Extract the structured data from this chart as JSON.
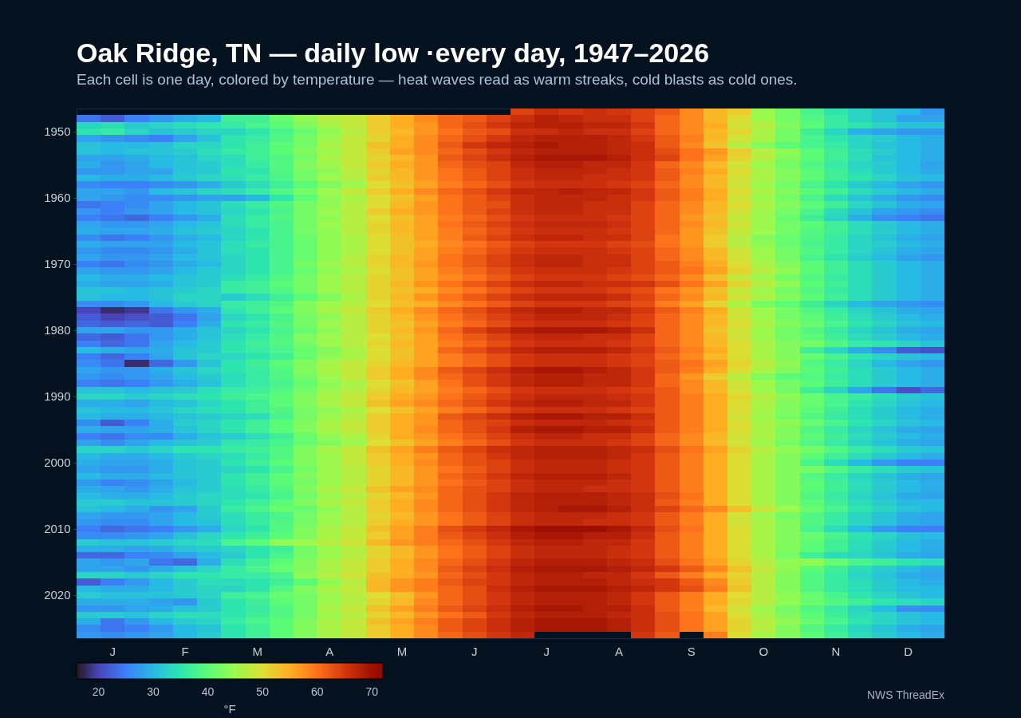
{
  "chart_data": {
    "type": "heatmap",
    "title": "Oak Ridge, TN — daily low ·every day, 1947–2026",
    "subtitle": "Each cell is one day, colored by temperature — heat waves read as warm streaks, cold blasts as cold ones.",
    "categories": [
      null,
      "J",
      null,
      null,
      "F",
      null,
      null,
      "M",
      null,
      null,
      "A",
      null,
      null,
      "M",
      null,
      null,
      "J",
      null,
      null,
      "J",
      null,
      null,
      "A",
      null,
      null,
      "S",
      null,
      null,
      "O",
      null,
      null,
      "N",
      null,
      null,
      "D",
      null
    ],
    "y_categories": [
      null,
      null,
      null,
      "1950",
      null,
      null,
      null,
      null,
      null,
      null,
      null,
      null,
      null,
      "1960",
      null,
      null,
      null,
      null,
      null,
      null,
      null,
      null,
      null,
      "1970",
      null,
      null,
      null,
      null,
      null,
      null,
      null,
      null,
      null,
      "1980",
      null,
      null,
      null,
      null,
      null,
      null,
      null,
      null,
      null,
      "1990",
      null,
      null,
      null,
      null,
      null,
      null,
      null,
      null,
      null,
      "2000",
      null,
      null,
      null,
      null,
      null,
      null,
      null,
      null,
      null,
      "2010",
      null,
      null,
      null,
      null,
      null,
      null,
      null,
      null,
      null,
      "2020",
      null,
      null,
      null,
      null,
      null,
      null
    ],
    "cells": [
      [
        null,
        null,
        null,
        null,
        null,
        null,
        null,
        null,
        null,
        null,
        null,
        null,
        null,
        null,
        null,
        null,
        null,
        null,
        64,
        66,
        65,
        66,
        65,
        64,
        62,
        58,
        54,
        52,
        45,
        42,
        38,
        35,
        33,
        31,
        30,
        27
      ],
      [
        24,
        22,
        25,
        27,
        29,
        30,
        37,
        37,
        41,
        44,
        47,
        48,
        52,
        55,
        58,
        61,
        62,
        64,
        66,
        68,
        67,
        66,
        66,
        64,
        61,
        58,
        54,
        50,
        45,
        42,
        39,
        36,
        33,
        31,
        28,
        28
      ],
      [
        33,
        34,
        32,
        33,
        34,
        35,
        36,
        38,
        40,
        43,
        46,
        48,
        52,
        55,
        57,
        61,
        63,
        65,
        67,
        68,
        68,
        67,
        67,
        65,
        61,
        58,
        55,
        49,
        47,
        43,
        40,
        36,
        35,
        33,
        31,
        31
      ],
      [
        35,
        36,
        33,
        31,
        32,
        33,
        33,
        35,
        38,
        41,
        44,
        47,
        52,
        54,
        57,
        60,
        62,
        63,
        66,
        66,
        67,
        66,
        66,
        64,
        61,
        58,
        54,
        51,
        46,
        42,
        37,
        33,
        29,
        28,
        27,
        27
      ],
      [
        28,
        27,
        26,
        25,
        28,
        31,
        35,
        36,
        39,
        42,
        45,
        48,
        51,
        55,
        58,
        61,
        63,
        65,
        67,
        68,
        68,
        68,
        67,
        65,
        62,
        59,
        54,
        49,
        46,
        42,
        38,
        35,
        33,
        32,
        30,
        29
      ],
      [
        31,
        30,
        30,
        31,
        33,
        33,
        35,
        37,
        40,
        42,
        46,
        48,
        53,
        55,
        58,
        62,
        65,
        67,
        68,
        69,
        68,
        68,
        67,
        66,
        62,
        58,
        53,
        47,
        43,
        40,
        38,
        36,
        33,
        31,
        30,
        29
      ],
      [
        31,
        30,
        31,
        31,
        32,
        34,
        36,
        37,
        40,
        43,
        45,
        48,
        52,
        56,
        58,
        61,
        63,
        65,
        67,
        68,
        68,
        68,
        67,
        66,
        63,
        60,
        57,
        52,
        47,
        44,
        40,
        37,
        34,
        32,
        30,
        29
      ],
      [
        28,
        28,
        29,
        30,
        31,
        33,
        34,
        37,
        39,
        42,
        46,
        48,
        51,
        54,
        57,
        62,
        64,
        66,
        68,
        69,
        69,
        69,
        68,
        66,
        64,
        60,
        56,
        51,
        47,
        43,
        40,
        37,
        34,
        31,
        30,
        29
      ],
      [
        29,
        27,
        28,
        30,
        31,
        32,
        34,
        36,
        39,
        43,
        45,
        48,
        52,
        55,
        57,
        61,
        63,
        64,
        67,
        68,
        68,
        67,
        67,
        65,
        61,
        58,
        54,
        49,
        45,
        42,
        39,
        36,
        33,
        32,
        30,
        28
      ],
      [
        27,
        27,
        28,
        28,
        31,
        32,
        35,
        35,
        39,
        42,
        44,
        47,
        51,
        54,
        57,
        60,
        62,
        64,
        66,
        67,
        67,
        67,
        66,
        65,
        62,
        59,
        55,
        50,
        46,
        43,
        40,
        37,
        34,
        32,
        30,
        29
      ],
      [
        30,
        29,
        29,
        30,
        32,
        33,
        34,
        36,
        38,
        42,
        45,
        47,
        52,
        54,
        57,
        60,
        62,
        64,
        66,
        67,
        67,
        66,
        66,
        65,
        62,
        58,
        54,
        49,
        46,
        43,
        40,
        37,
        35,
        33,
        31,
        30
      ],
      [
        26,
        25,
        25,
        26,
        27,
        29,
        32,
        34,
        37,
        40,
        43,
        45,
        50,
        53,
        56,
        59,
        61,
        63,
        65,
        66,
        66,
        66,
        65,
        64,
        61,
        58,
        54,
        49,
        45,
        42,
        38,
        35,
        32,
        30,
        28,
        27
      ],
      [
        28,
        28,
        27,
        30,
        31,
        33,
        34,
        36,
        39,
        42,
        45,
        48,
        52,
        55,
        58,
        61,
        63,
        65,
        67,
        67,
        68,
        67,
        67,
        65,
        62,
        59,
        55,
        50,
        46,
        43,
        40,
        37,
        34,
        32,
        30,
        29
      ],
      [
        28,
        27,
        26,
        26,
        27,
        28,
        28,
        30,
        35,
        40,
        44,
        46,
        50,
        53,
        56,
        60,
        62,
        64,
        66,
        67,
        67,
        67,
        66,
        65,
        62,
        59,
        55,
        49,
        45,
        42,
        38,
        34,
        31,
        29,
        27,
        26
      ],
      [
        24,
        25,
        26,
        28,
        30,
        31,
        34,
        36,
        39,
        42,
        44,
        47,
        50,
        54,
        57,
        60,
        62,
        63,
        66,
        67,
        67,
        66,
        66,
        64,
        61,
        58,
        54,
        50,
        46,
        43,
        40,
        37,
        33,
        31,
        29,
        28
      ],
      [
        27,
        25,
        27,
        28,
        30,
        31,
        33,
        35,
        38,
        42,
        45,
        47,
        52,
        55,
        57,
        60,
        62,
        64,
        66,
        67,
        67,
        66,
        66,
        64,
        61,
        58,
        54,
        49,
        45,
        42,
        38,
        34,
        31,
        28,
        27,
        26
      ],
      [
        25,
        24,
        23,
        25,
        27,
        29,
        34,
        36,
        39,
        42,
        44,
        47,
        50,
        53,
        56,
        59,
        61,
        63,
        65,
        66,
        66,
        66,
        65,
        64,
        61,
        57,
        53,
        48,
        45,
        41,
        37,
        33,
        29,
        26,
        25,
        24
      ],
      [
        28,
        27,
        27,
        28,
        30,
        31,
        34,
        36,
        38,
        42,
        45,
        47,
        51,
        54,
        56,
        60,
        62,
        64,
        66,
        67,
        67,
        67,
        66,
        64,
        61,
        58,
        54,
        49,
        45,
        42,
        40,
        37,
        34,
        32,
        30,
        29
      ],
      [
        29,
        28,
        28,
        29,
        31,
        32,
        33,
        35,
        38,
        42,
        44,
        47,
        51,
        54,
        56,
        59,
        61,
        63,
        65,
        66,
        66,
        66,
        65,
        64,
        61,
        57,
        53,
        48,
        45,
        42,
        39,
        37,
        34,
        32,
        30,
        29
      ],
      [
        26,
        24,
        25,
        27,
        29,
        30,
        33,
        35,
        38,
        41,
        44,
        46,
        50,
        53,
        56,
        59,
        62,
        64,
        66,
        67,
        67,
        66,
        66,
        64,
        60,
        57,
        52,
        47,
        43,
        41,
        39,
        36,
        33,
        31,
        29,
        28
      ],
      [
        29,
        28,
        28,
        28,
        30,
        31,
        34,
        36,
        38,
        41,
        44,
        46,
        50,
        53,
        55,
        58,
        60,
        62,
        64,
        65,
        65,
        65,
        64,
        63,
        60,
        57,
        52,
        47,
        44,
        41,
        38,
        36,
        33,
        32,
        30,
        29
      ],
      [
        27,
        26,
        26,
        27,
        29,
        31,
        34,
        35,
        38,
        41,
        44,
        46,
        50,
        53,
        56,
        59,
        61,
        63,
        65,
        66,
        66,
        66,
        65,
        64,
        61,
        58,
        54,
        49,
        45,
        42,
        39,
        36,
        33,
        31,
        29,
        28
      ],
      [
        28,
        27,
        27,
        28,
        30,
        31,
        33,
        35,
        38,
        41,
        44,
        47,
        51,
        54,
        56,
        60,
        62,
        64,
        66,
        67,
        67,
        66,
        66,
        64,
        61,
        58,
        54,
        49,
        45,
        42,
        38,
        35,
        32,
        30,
        28,
        27
      ],
      [
        25,
        24,
        26,
        27,
        29,
        30,
        33,
        35,
        38,
        42,
        45,
        47,
        51,
        54,
        57,
        60,
        62,
        64,
        66,
        67,
        67,
        66,
        66,
        64,
        62,
        59,
        55,
        50,
        46,
        43,
        40,
        37,
        34,
        32,
        30,
        29
      ],
      [
        28,
        27,
        27,
        28,
        30,
        32,
        33,
        35,
        38,
        41,
        44,
        46,
        50,
        53,
        56,
        59,
        61,
        63,
        65,
        66,
        66,
        66,
        65,
        64,
        62,
        60,
        56,
        51,
        47,
        44,
        40,
        37,
        34,
        32,
        30,
        29
      ],
      [
        30,
        29,
        29,
        30,
        31,
        32,
        34,
        36,
        39,
        42,
        45,
        47,
        51,
        53,
        56,
        58,
        60,
        62,
        64,
        65,
        65,
        65,
        64,
        63,
        61,
        58,
        53,
        48,
        45,
        42,
        39,
        36,
        34,
        32,
        30,
        29
      ],
      [
        29,
        28,
        28,
        29,
        31,
        32,
        36,
        37,
        40,
        42,
        45,
        47,
        51,
        54,
        57,
        60,
        62,
        64,
        66,
        67,
        67,
        66,
        66,
        65,
        63,
        60,
        56,
        51,
        47,
        44,
        40,
        37,
        34,
        32,
        30,
        29
      ],
      [
        31,
        31,
        30,
        31,
        32,
        33,
        36,
        37,
        39,
        42,
        45,
        47,
        51,
        53,
        55,
        58,
        60,
        62,
        64,
        65,
        65,
        65,
        64,
        63,
        60,
        57,
        53,
        48,
        45,
        42,
        39,
        36,
        34,
        32,
        30,
        29
      ],
      [
        31,
        30,
        30,
        31,
        33,
        33,
        32,
        34,
        37,
        40,
        43,
        46,
        51,
        54,
        57,
        60,
        62,
        64,
        66,
        67,
        67,
        67,
        66,
        64,
        61,
        58,
        54,
        49,
        46,
        43,
        40,
        37,
        34,
        32,
        30,
        29
      ],
      [
        26,
        26,
        27,
        30,
        32,
        33,
        36,
        37,
        39,
        43,
        45,
        47,
        50,
        53,
        55,
        58,
        60,
        62,
        64,
        65,
        65,
        65,
        64,
        63,
        59,
        56,
        51,
        46,
        42,
        40,
        37,
        33,
        30,
        28,
        27,
        26
      ],
      [
        20,
        18,
        19,
        24,
        27,
        29,
        35,
        37,
        40,
        43,
        46,
        48,
        52,
        55,
        58,
        61,
        63,
        65,
        67,
        68,
        68,
        67,
        67,
        65,
        62,
        59,
        55,
        49,
        45,
        42,
        39,
        36,
        33,
        31,
        29,
        28
      ],
      [
        22,
        20,
        21,
        22,
        24,
        28,
        33,
        35,
        38,
        42,
        44,
        47,
        51,
        54,
        57,
        60,
        62,
        64,
        66,
        67,
        67,
        67,
        66,
        64,
        61,
        58,
        54,
        49,
        45,
        42,
        40,
        37,
        34,
        32,
        30,
        29
      ],
      [
        23,
        22,
        23,
        22,
        25,
        29,
        35,
        36,
        39,
        42,
        45,
        47,
        51,
        53,
        56,
        59,
        61,
        63,
        65,
        66,
        66,
        66,
        65,
        64,
        61,
        58,
        54,
        50,
        46,
        43,
        41,
        38,
        35,
        33,
        31,
        30
      ],
      [
        28,
        28,
        27,
        27,
        29,
        31,
        33,
        35,
        38,
        41,
        44,
        47,
        51,
        54,
        57,
        61,
        64,
        66,
        68,
        69,
        69,
        69,
        68,
        66,
        61,
        58,
        53,
        49,
        45,
        42,
        39,
        36,
        33,
        31,
        29,
        28
      ],
      [
        23,
        22,
        24,
        27,
        29,
        31,
        34,
        36,
        39,
        43,
        45,
        47,
        50,
        53,
        56,
        60,
        62,
        64,
        66,
        67,
        67,
        66,
        66,
        64,
        61,
        58,
        54,
        49,
        45,
        42,
        40,
        37,
        34,
        32,
        30,
        29
      ],
      [
        25,
        23,
        24,
        28,
        30,
        32,
        35,
        37,
        39,
        42,
        45,
        47,
        51,
        54,
        56,
        59,
        61,
        63,
        65,
        66,
        66,
        66,
        65,
        64,
        61,
        58,
        54,
        50,
        46,
        43,
        42,
        39,
        36,
        35,
        33,
        31
      ],
      [
        30,
        29,
        28,
        29,
        31,
        32,
        35,
        36,
        38,
        41,
        43,
        46,
        50,
        53,
        56,
        61,
        63,
        65,
        67,
        68,
        68,
        68,
        67,
        65,
        62,
        59,
        55,
        50,
        46,
        43,
        37,
        33,
        29,
        26,
        22,
        21
      ],
      [
        25,
        23,
        25,
        28,
        31,
        33,
        33,
        35,
        37,
        41,
        44,
        46,
        50,
        53,
        56,
        59,
        61,
        63,
        65,
        66,
        66,
        66,
        65,
        64,
        61,
        58,
        54,
        50,
        46,
        43,
        41,
        38,
        35,
        33,
        31,
        30
      ],
      [
        26,
        24,
        18,
        23,
        27,
        31,
        35,
        37,
        40,
        43,
        46,
        48,
        51,
        54,
        56,
        59,
        61,
        63,
        65,
        66,
        66,
        66,
        65,
        64,
        62,
        60,
        56,
        51,
        47,
        44,
        39,
        36,
        33,
        30,
        28,
        27
      ],
      [
        28,
        27,
        27,
        29,
        31,
        33,
        35,
        36,
        39,
        43,
        46,
        48,
        52,
        55,
        58,
        62,
        64,
        66,
        68,
        69,
        69,
        68,
        67,
        65,
        62,
        59,
        55,
        50,
        46,
        43,
        40,
        37,
        34,
        32,
        30,
        29
      ],
      [
        27,
        26,
        27,
        28,
        30,
        32,
        34,
        36,
        39,
        42,
        45,
        48,
        52,
        55,
        58,
        61,
        63,
        65,
        67,
        68,
        68,
        67,
        67,
        65,
        61,
        57,
        52,
        47,
        43,
        40,
        39,
        36,
        34,
        32,
        30,
        29
      ],
      [
        25,
        24,
        25,
        27,
        29,
        31,
        34,
        36,
        38,
        41,
        44,
        46,
        50,
        53,
        56,
        60,
        63,
        65,
        67,
        68,
        68,
        67,
        67,
        65,
        61,
        58,
        54,
        49,
        45,
        42,
        40,
        37,
        34,
        32,
        30,
        29
      ],
      [
        31,
        31,
        30,
        31,
        32,
        34,
        36,
        37,
        39,
        42,
        45,
        47,
        51,
        54,
        56,
        59,
        61,
        63,
        65,
        66,
        66,
        66,
        65,
        64,
        62,
        58,
        54,
        49,
        45,
        42,
        37,
        33,
        28,
        24,
        21,
        23
      ],
      [
        33,
        33,
        32,
        33,
        34,
        35,
        37,
        38,
        40,
        43,
        46,
        48,
        52,
        55,
        57,
        60,
        62,
        64,
        66,
        67,
        67,
        67,
        66,
        65,
        62,
        59,
        55,
        51,
        47,
        44,
        41,
        38,
        36,
        34,
        32,
        31
      ],
      [
        29,
        29,
        28,
        30,
        31,
        33,
        35,
        37,
        40,
        43,
        46,
        48,
        53,
        56,
        58,
        61,
        63,
        65,
        67,
        68,
        68,
        67,
        67,
        65,
        62,
        59,
        55,
        50,
        46,
        43,
        41,
        38,
        35,
        33,
        31,
        30
      ],
      [
        31,
        30,
        30,
        31,
        33,
        34,
        35,
        37,
        39,
        42,
        44,
        46,
        50,
        53,
        56,
        59,
        61,
        63,
        65,
        66,
        66,
        66,
        65,
        64,
        62,
        59,
        55,
        50,
        46,
        43,
        40,
        37,
        34,
        32,
        30,
        29
      ],
      [
        30,
        29,
        29,
        30,
        31,
        32,
        33,
        34,
        38,
        42,
        45,
        47,
        52,
        55,
        57,
        62,
        64,
        66,
        68,
        69,
        69,
        68,
        68,
        66,
        62,
        59,
        55,
        49,
        45,
        42,
        39,
        36,
        34,
        32,
        30,
        29
      ],
      [
        26,
        22,
        25,
        29,
        32,
        33,
        35,
        37,
        40,
        43,
        46,
        48,
        52,
        55,
        57,
        61,
        63,
        64,
        66,
        67,
        67,
        67,
        66,
        65,
        62,
        59,
        55,
        50,
        46,
        44,
        41,
        38,
        35,
        33,
        31,
        30
      ],
      [
        29,
        28,
        28,
        29,
        31,
        33,
        35,
        37,
        40,
        43,
        46,
        48,
        52,
        55,
        58,
        61,
        63,
        65,
        68,
        69,
        69,
        68,
        68,
        66,
        62,
        59,
        55,
        50,
        46,
        43,
        39,
        36,
        33,
        31,
        29,
        28
      ],
      [
        25,
        24,
        26,
        26,
        29,
        31,
        32,
        34,
        37,
        41,
        44,
        46,
        51,
        55,
        57,
        60,
        62,
        64,
        66,
        67,
        67,
        66,
        66,
        64,
        61,
        58,
        54,
        49,
        46,
        43,
        40,
        37,
        34,
        32,
        30,
        29
      ],
      [
        28,
        26,
        28,
        30,
        31,
        32,
        35,
        36,
        38,
        41,
        43,
        45,
        50,
        53,
        56,
        59,
        61,
        63,
        65,
        66,
        66,
        66,
        65,
        64,
        61,
        58,
        54,
        49,
        45,
        42,
        39,
        36,
        33,
        31,
        29,
        28
      ],
      [
        33,
        33,
        32,
        33,
        35,
        35,
        36,
        37,
        39,
        43,
        46,
        48,
        53,
        56,
        59,
        62,
        64,
        66,
        67,
        68,
        68,
        68,
        67,
        66,
        63,
        60,
        56,
        51,
        47,
        44,
        42,
        39,
        36,
        34,
        32,
        31
      ],
      [
        30,
        29,
        29,
        30,
        32,
        33,
        34,
        36,
        39,
        43,
        45,
        48,
        52,
        55,
        57,
        61,
        63,
        65,
        67,
        68,
        68,
        68,
        67,
        65,
        62,
        59,
        55,
        50,
        46,
        43,
        40,
        37,
        34,
        32,
        30,
        29
      ],
      [
        29,
        28,
        28,
        29,
        31,
        32,
        35,
        37,
        40,
        43,
        45,
        48,
        52,
        55,
        58,
        61,
        63,
        64,
        66,
        67,
        67,
        67,
        66,
        65,
        62,
        59,
        55,
        50,
        46,
        43,
        38,
        34,
        30,
        27,
        25,
        25
      ],
      [
        28,
        27,
        27,
        29,
        31,
        32,
        33,
        35,
        38,
        42,
        45,
        47,
        51,
        54,
        57,
        60,
        62,
        64,
        66,
        67,
        67,
        67,
        66,
        65,
        62,
        59,
        55,
        50,
        46,
        43,
        42,
        39,
        36,
        34,
        32,
        31
      ],
      [
        30,
        29,
        29,
        30,
        31,
        32,
        35,
        37,
        40,
        43,
        45,
        47,
        51,
        54,
        57,
        61,
        63,
        65,
        67,
        68,
        68,
        68,
        67,
        65,
        62,
        59,
        55,
        50,
        46,
        43,
        39,
        36,
        33,
        31,
        29,
        28
      ],
      [
        27,
        25,
        26,
        28,
        30,
        32,
        35,
        37,
        40,
        42,
        45,
        47,
        51,
        54,
        57,
        60,
        62,
        64,
        66,
        67,
        67,
        67,
        66,
        65,
        62,
        59,
        55,
        50,
        46,
        43,
        40,
        37,
        34,
        32,
        30,
        29
      ],
      [
        29,
        28,
        27,
        29,
        31,
        32,
        34,
        36,
        39,
        43,
        46,
        48,
        53,
        56,
        58,
        61,
        63,
        64,
        66,
        67,
        67,
        66,
        66,
        65,
        62,
        59,
        55,
        50,
        46,
        43,
        40,
        37,
        34,
        32,
        30,
        29
      ],
      [
        30,
        29,
        29,
        30,
        32,
        33,
        34,
        35,
        38,
        42,
        45,
        47,
        51,
        54,
        57,
        61,
        63,
        65,
        67,
        68,
        68,
        68,
        67,
        66,
        63,
        60,
        55,
        50,
        46,
        43,
        39,
        36,
        33,
        31,
        29,
        28
      ],
      [
        32,
        32,
        31,
        31,
        32,
        33,
        35,
        37,
        40,
        43,
        46,
        48,
        52,
        55,
        58,
        61,
        63,
        65,
        67,
        68,
        68,
        68,
        67,
        66,
        62,
        59,
        55,
        50,
        46,
        43,
        40,
        37,
        34,
        32,
        30,
        30
      ],
      [
        31,
        30,
        29,
        27,
        28,
        32,
        36,
        38,
        41,
        41,
        44,
        47,
        52,
        55,
        58,
        61,
        63,
        65,
        67,
        68,
        69,
        69,
        68,
        66,
        64,
        61,
        58,
        53,
        48,
        45,
        41,
        38,
        35,
        33,
        31,
        30
      ],
      [
        28,
        27,
        27,
        28,
        30,
        32,
        34,
        36,
        38,
        42,
        45,
        47,
        51,
        54,
        57,
        60,
        62,
        64,
        66,
        67,
        67,
        67,
        66,
        65,
        62,
        59,
        55,
        49,
        45,
        42,
        39,
        36,
        33,
        31,
        29,
        28
      ],
      [
        27,
        26,
        26,
        28,
        30,
        31,
        34,
        36,
        39,
        42,
        45,
        47,
        52,
        55,
        57,
        60,
        62,
        64,
        66,
        67,
        67,
        66,
        66,
        65,
        62,
        59,
        55,
        49,
        46,
        43,
        39,
        36,
        33,
        31,
        29,
        28
      ],
      [
        25,
        23,
        24,
        25,
        27,
        29,
        33,
        35,
        39,
        43,
        46,
        48,
        53,
        56,
        59,
        63,
        65,
        67,
        69,
        70,
        70,
        70,
        69,
        67,
        63,
        60,
        55,
        50,
        46,
        43,
        38,
        34,
        30,
        27,
        25,
        25
      ],
      [
        26,
        26,
        27,
        28,
        31,
        33,
        35,
        37,
        40,
        43,
        46,
        48,
        52,
        56,
        59,
        62,
        64,
        66,
        68,
        69,
        69,
        68,
        68,
        66,
        62,
        59,
        55,
        50,
        46,
        43,
        41,
        38,
        35,
        33,
        31,
        30
      ],
      [
        32,
        31,
        31,
        32,
        33,
        34,
        38,
        40,
        44,
        45,
        47,
        49,
        54,
        57,
        59,
        61,
        63,
        65,
        67,
        68,
        68,
        67,
        67,
        65,
        62,
        59,
        55,
        50,
        46,
        43,
        40,
        37,
        34,
        32,
        30,
        29
      ],
      [
        29,
        29,
        28,
        29,
        31,
        32,
        33,
        35,
        37,
        42,
        45,
        47,
        51,
        54,
        57,
        60,
        62,
        64,
        66,
        67,
        67,
        67,
        66,
        65,
        62,
        59,
        55,
        50,
        46,
        43,
        40,
        37,
        34,
        32,
        30,
        29
      ],
      [
        23,
        23,
        25,
        26,
        28,
        30,
        32,
        35,
        38,
        42,
        45,
        47,
        51,
        54,
        57,
        60,
        62,
        64,
        66,
        67,
        67,
        67,
        66,
        65,
        62,
        59,
        55,
        50,
        46,
        42,
        37,
        34,
        33,
        31,
        29,
        28
      ],
      [
        28,
        27,
        28,
        24,
        23,
        29,
        34,
        37,
        40,
        43,
        46,
        48,
        52,
        55,
        58,
        61,
        63,
        65,
        67,
        68,
        68,
        68,
        67,
        66,
        63,
        60,
        56,
        51,
        47,
        44,
        44,
        41,
        38,
        37,
        35,
        34
      ],
      [
        28,
        28,
        27,
        29,
        31,
        33,
        36,
        38,
        41,
        43,
        46,
        48,
        52,
        55,
        58,
        62,
        64,
        66,
        68,
        69,
        69,
        69,
        68,
        67,
        65,
        62,
        58,
        53,
        48,
        44,
        40,
        37,
        34,
        32,
        30,
        29
      ],
      [
        33,
        33,
        32,
        33,
        35,
        35,
        36,
        36,
        38,
        44,
        47,
        49,
        53,
        55,
        57,
        61,
        63,
        65,
        67,
        68,
        68,
        67,
        67,
        65,
        62,
        59,
        55,
        51,
        47,
        43,
        39,
        36,
        33,
        31,
        29,
        28
      ],
      [
        22,
        25,
        27,
        30,
        32,
        34,
        34,
        35,
        37,
        40,
        44,
        47,
        54,
        57,
        59,
        62,
        64,
        65,
        67,
        68,
        68,
        68,
        67,
        66,
        65,
        62,
        58,
        52,
        47,
        43,
        39,
        36,
        34,
        32,
        30,
        29
      ],
      [
        30,
        29,
        29,
        30,
        32,
        33,
        33,
        35,
        39,
        43,
        46,
        48,
        54,
        57,
        59,
        61,
        63,
        66,
        68,
        69,
        69,
        69,
        68,
        67,
        65,
        63,
        59,
        53,
        47,
        43,
        39,
        36,
        34,
        32,
        30,
        30
      ],
      [
        32,
        31,
        31,
        31,
        32,
        33,
        37,
        38,
        41,
        42,
        45,
        47,
        50,
        53,
        57,
        61,
        63,
        65,
        67,
        68,
        68,
        68,
        67,
        65,
        62,
        59,
        55,
        50,
        47,
        44,
        41,
        38,
        35,
        33,
        31,
        30
      ],
      [
        29,
        29,
        29,
        28,
        27,
        32,
        35,
        37,
        40,
        42,
        45,
        47,
        51,
        54,
        58,
        61,
        63,
        65,
        67,
        68,
        68,
        68,
        67,
        65,
        62,
        59,
        55,
        51,
        47,
        44,
        41,
        39,
        37,
        35,
        34,
        33
      ],
      [
        27,
        27,
        28,
        29,
        31,
        32,
        35,
        36,
        39,
        42,
        46,
        48,
        53,
        56,
        59,
        62,
        64,
        66,
        68,
        69,
        69,
        68,
        68,
        66,
        62,
        59,
        54,
        49,
        45,
        42,
        39,
        36,
        33,
        30,
        26,
        26
      ],
      [
        32,
        32,
        31,
        33,
        34,
        34,
        35,
        37,
        39,
        42,
        45,
        47,
        51,
        54,
        57,
        60,
        62,
        65,
        67,
        68,
        68,
        68,
        67,
        66,
        63,
        60,
        56,
        50,
        46,
        43,
        40,
        37,
        34,
        33,
        31,
        30
      ],
      [
        29,
        24,
        27,
        30,
        32,
        33,
        36,
        38,
        40,
        43,
        46,
        48,
        53,
        56,
        59,
        62,
        64,
        66,
        68,
        69,
        69,
        69,
        68,
        66,
        63,
        60,
        56,
        51,
        47,
        44,
        41,
        38,
        35,
        33,
        31,
        30
      ],
      [
        26,
        24,
        25,
        27,
        30,
        31,
        35,
        37,
        40,
        43,
        46,
        48,
        52,
        55,
        58,
        62,
        64,
        66,
        68,
        69,
        69,
        69,
        68,
        66,
        63,
        60,
        56,
        51,
        47,
        43,
        39,
        36,
        33,
        31,
        29,
        28
      ],
      [
        27,
        26,
        27,
        28,
        30,
        32,
        35,
        37,
        40,
        43,
        46,
        48,
        52,
        55,
        58,
        61,
        63,
        65,
        67,
        null,
        null,
        null,
        null,
        65,
        62,
        null,
        59,
        50,
        46,
        43,
        40,
        37,
        34,
        32,
        30,
        29
      ]
    ],
    "clim": [
      16,
      72
    ],
    "cticks": [
      20,
      30,
      40,
      50,
      60,
      70
    ],
    "clabel": "°F",
    "annotations": [
      "NWS ThreadEx"
    ]
  }
}
